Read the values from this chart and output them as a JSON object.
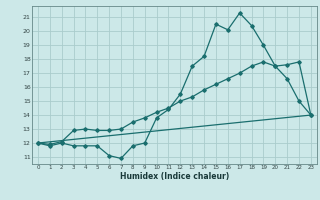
{
  "xlabel": "Humidex (Indice chaleur)",
  "bg_color": "#cce8e8",
  "line_color": "#1a6e6e",
  "grid_color": "#aacccc",
  "ylim": [
    10.5,
    21.8
  ],
  "xlim": [
    -0.5,
    23.5
  ],
  "yticks": [
    11,
    12,
    13,
    14,
    15,
    16,
    17,
    18,
    19,
    20,
    21
  ],
  "xticks": [
    0,
    1,
    2,
    3,
    4,
    5,
    6,
    7,
    8,
    9,
    10,
    11,
    12,
    13,
    14,
    15,
    16,
    17,
    18,
    19,
    20,
    21,
    22,
    23
  ],
  "line1_x": [
    0,
    1,
    2,
    3,
    4,
    5,
    6,
    7,
    8,
    9,
    10,
    11,
    12,
    13,
    14,
    15,
    16,
    17,
    18,
    19,
    20,
    21,
    22,
    23
  ],
  "line1_y": [
    12.0,
    11.8,
    12.0,
    11.8,
    11.8,
    11.8,
    11.1,
    10.9,
    11.8,
    12.0,
    13.8,
    14.4,
    15.5,
    17.5,
    18.2,
    20.5,
    20.1,
    21.3,
    20.4,
    19.0,
    17.5,
    16.6,
    15.0,
    14.0
  ],
  "line2_x": [
    0,
    1,
    2,
    3,
    4,
    5,
    6,
    7,
    8,
    9,
    10,
    11,
    12,
    13,
    14,
    15,
    16,
    17,
    18,
    19,
    20,
    21,
    22,
    23
  ],
  "line2_y": [
    12.0,
    11.9,
    12.1,
    12.9,
    13.0,
    12.9,
    12.9,
    13.0,
    13.5,
    13.8,
    14.2,
    14.5,
    15.0,
    15.3,
    15.8,
    16.2,
    16.6,
    17.0,
    17.5,
    17.8,
    17.5,
    17.6,
    17.8,
    14.0
  ],
  "line3_x": [
    0,
    23
  ],
  "line3_y": [
    12.0,
    14.0
  ]
}
